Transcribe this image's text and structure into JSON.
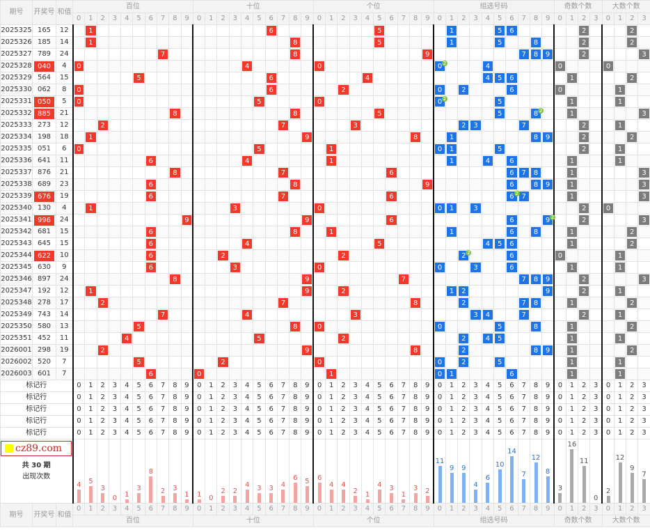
{
  "headers": {
    "period": "期号",
    "draw": "开奖号",
    "sum": "和值",
    "groups": [
      "百位",
      "十位",
      "个位",
      "组选号码",
      "奇数个数",
      "大数个数"
    ]
  },
  "mark_label": "标记行",
  "stats_label": [
    "共 30 期",
    "出现次数"
  ],
  "logo": "cz89.com",
  "colors": {
    "position": "#f0382b",
    "group": "#1e74e6",
    "count": "#7b7c7d",
    "dup_badge": "#7cc242"
  },
  "rows": [
    {
      "p": "2025325",
      "n": "165",
      "s": "12",
      "odd": 2,
      "big": 2
    },
    {
      "p": "2025326",
      "n": "185",
      "s": "14",
      "odd": 2,
      "big": 2
    },
    {
      "p": "2025327",
      "n": "789",
      "s": "24",
      "odd": 2,
      "big": 3
    },
    {
      "p": "2025328",
      "n": "040",
      "s": "4",
      "odd": 0,
      "big": 0
    },
    {
      "p": "2025329",
      "n": "564",
      "s": "15",
      "odd": 1,
      "big": 2
    },
    {
      "p": "2025330",
      "n": "062",
      "s": "8",
      "odd": 0,
      "big": 1
    },
    {
      "p": "2025331",
      "n": "050",
      "s": "5",
      "odd": 1,
      "big": 1
    },
    {
      "p": "2025332",
      "n": "885",
      "s": "21",
      "odd": 1,
      "big": 3
    },
    {
      "p": "2025333",
      "n": "273",
      "s": "12",
      "odd": 2,
      "big": 1
    },
    {
      "p": "2025334",
      "n": "198",
      "s": "18",
      "odd": 2,
      "big": 2
    },
    {
      "p": "2025335",
      "n": "051",
      "s": "6",
      "odd": 2,
      "big": 1
    },
    {
      "p": "2025336",
      "n": "641",
      "s": "11",
      "odd": 1,
      "big": 1
    },
    {
      "p": "2025337",
      "n": "876",
      "s": "21",
      "odd": 1,
      "big": 3
    },
    {
      "p": "2025338",
      "n": "689",
      "s": "23",
      "odd": 1,
      "big": 3
    },
    {
      "p": "2025339",
      "n": "676",
      "s": "19",
      "odd": 1,
      "big": 3
    },
    {
      "p": "2025340",
      "n": "130",
      "s": "4",
      "odd": 2,
      "big": 0
    },
    {
      "p": "2025341",
      "n": "996",
      "s": "24",
      "odd": 2,
      "big": 3
    },
    {
      "p": "2025342",
      "n": "681",
      "s": "15",
      "odd": 1,
      "big": 2
    },
    {
      "p": "2025343",
      "n": "645",
      "s": "15",
      "odd": 1,
      "big": 2
    },
    {
      "p": "2025344",
      "n": "622",
      "s": "10",
      "odd": 0,
      "big": 1
    },
    {
      "p": "2025345",
      "n": "630",
      "s": "9",
      "odd": 1,
      "big": 1
    },
    {
      "p": "2025346",
      "n": "897",
      "s": "24",
      "odd": 2,
      "big": 3
    },
    {
      "p": "2025347",
      "n": "192",
      "s": "12",
      "odd": 2,
      "big": 1
    },
    {
      "p": "2025348",
      "n": "278",
      "s": "17",
      "odd": 1,
      "big": 2
    },
    {
      "p": "2025349",
      "n": "743",
      "s": "14",
      "odd": 2,
      "big": 1
    },
    {
      "p": "2025350",
      "n": "580",
      "s": "13",
      "odd": 1,
      "big": 2
    },
    {
      "p": "2025351",
      "n": "452",
      "s": "11",
      "odd": 1,
      "big": 1
    },
    {
      "p": "2026001",
      "n": "298",
      "s": "19",
      "odd": 1,
      "big": 2
    },
    {
      "p": "2026002",
      "n": "520",
      "s": "7",
      "odd": 1,
      "big": 1
    },
    {
      "p": "2026003",
      "n": "601",
      "s": "7",
      "odd": 1,
      "big": 1
    }
  ],
  "highlighted_draws": [
    "040",
    "050",
    "885",
    "676",
    "996",
    "622"
  ],
  "stats": {
    "hundreds": [
      4,
      5,
      3,
      0,
      1,
      3,
      8,
      2,
      3,
      1
    ],
    "tens": [
      1,
      0,
      2,
      2,
      4,
      3,
      3,
      4,
      6,
      5
    ],
    "units": [
      6,
      4,
      4,
      2,
      1,
      4,
      3,
      1,
      3,
      2
    ],
    "group": [
      11,
      9,
      9,
      4,
      6,
      10,
      14,
      7,
      12,
      8
    ],
    "odd": [
      3,
      16,
      11,
      0
    ],
    "big": [
      2,
      12,
      9,
      7
    ]
  }
}
